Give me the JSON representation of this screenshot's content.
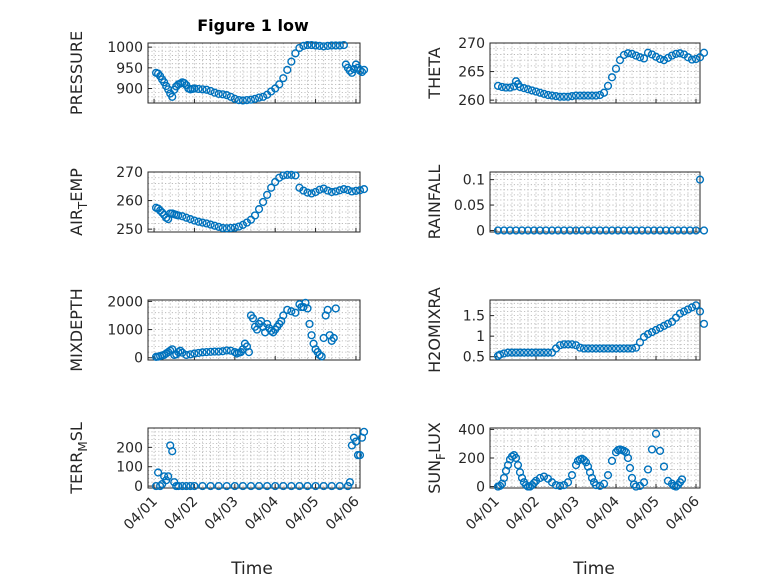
{
  "figure": {
    "title": "Figure 1 low",
    "xlabel": "Time",
    "x_tick_labels": [
      "04/01",
      "04/02",
      "04/03",
      "04/04",
      "04/05",
      "04/06"
    ],
    "marker_color": "#0072BD"
  },
  "chart_data": [
    {
      "type": "scatter",
      "ylabel": "PRESSURE",
      "ylim": [
        865,
        1010
      ],
      "yticks": [
        900,
        950,
        1000
      ],
      "grid": true,
      "x": [
        0.05,
        0.1,
        0.15,
        0.2,
        0.25,
        0.3,
        0.35,
        0.4,
        0.45,
        0.5,
        0.55,
        0.6,
        0.65,
        0.7,
        0.75,
        0.8,
        0.85,
        0.9,
        0.95,
        1.0,
        1.1,
        1.2,
        1.3,
        1.4,
        1.5,
        1.6,
        1.7,
        1.8,
        1.9,
        2.0,
        2.1,
        2.2,
        2.3,
        2.4,
        2.5,
        2.6,
        2.7,
        2.8,
        2.9,
        3.0,
        3.1,
        3.2,
        3.3,
        3.4,
        3.5,
        3.6,
        3.7,
        3.8,
        3.9,
        4.0,
        4.1,
        4.2,
        4.3,
        4.4,
        4.5,
        4.6,
        4.7,
        4.75,
        4.8,
        4.85,
        4.9,
        4.95,
        5.0,
        5.05,
        5.1,
        5.15,
        5.2
      ],
      "y": [
        938,
        936,
        930,
        922,
        915,
        906,
        898,
        888,
        880,
        897,
        905,
        910,
        912,
        915,
        913,
        908,
        900,
        898,
        899,
        900,
        899,
        898,
        897,
        894,
        890,
        887,
        886,
        884,
        880,
        875,
        872,
        871,
        872,
        873,
        875,
        878,
        880,
        885,
        893,
        900,
        910,
        925,
        945,
        965,
        985,
        998,
        1003,
        1005,
        1005,
        1004,
        1003,
        1002,
        1003,
        1004,
        1004,
        1004,
        1005,
        958,
        950,
        943,
        938,
        947,
        958,
        950,
        943,
        940,
        945
      ]
    },
    {
      "type": "scatter",
      "ylabel": "THETA",
      "ylim": [
        259.5,
        270
      ],
      "yticks": [
        260,
        265,
        270
      ],
      "grid": true,
      "x": [
        0.05,
        0.15,
        0.25,
        0.35,
        0.45,
        0.5,
        0.55,
        0.6,
        0.7,
        0.8,
        0.9,
        1.0,
        1.1,
        1.2,
        1.3,
        1.4,
        1.5,
        1.6,
        1.7,
        1.8,
        1.9,
        2.0,
        2.1,
        2.2,
        2.3,
        2.4,
        2.5,
        2.6,
        2.7,
        2.8,
        2.9,
        3.0,
        3.1,
        3.2,
        3.3,
        3.4,
        3.5,
        3.6,
        3.7,
        3.8,
        3.9,
        4.0,
        4.1,
        4.2,
        4.3,
        4.4,
        4.5,
        4.6,
        4.7,
        4.8,
        4.9,
        5.0,
        5.1,
        5.2
      ],
      "y": [
        262.5,
        262.3,
        262.2,
        262.2,
        262.4,
        263.3,
        262.8,
        262.3,
        262.1,
        261.9,
        261.7,
        261.5,
        261.3,
        261.1,
        260.9,
        260.8,
        260.7,
        260.6,
        260.6,
        260.6,
        260.7,
        260.8,
        260.8,
        260.8,
        260.8,
        260.8,
        260.8,
        260.9,
        261.3,
        262.5,
        264,
        265.5,
        267,
        267.9,
        268.2,
        268.1,
        267.8,
        267.5,
        267.3,
        268.3,
        268,
        267.6,
        267.2,
        267,
        267.4,
        267.8,
        268.1,
        268.2,
        268,
        267.5,
        267.1,
        267.2,
        267.5,
        268.3
      ]
    },
    {
      "type": "scatter",
      "ylabel": "AIR_TEMP",
      "ylabel_main": "AIR",
      "ylabel_sub": "T",
      "ylabel_rest": "EMP",
      "ylim": [
        249,
        270
      ],
      "yticks": [
        250,
        260,
        270
      ],
      "grid": true,
      "x": [
        0.05,
        0.1,
        0.15,
        0.2,
        0.25,
        0.3,
        0.35,
        0.4,
        0.45,
        0.5,
        0.55,
        0.6,
        0.7,
        0.8,
        0.9,
        1.0,
        1.1,
        1.2,
        1.3,
        1.4,
        1.5,
        1.6,
        1.7,
        1.8,
        1.9,
        2.0,
        2.1,
        2.2,
        2.3,
        2.4,
        2.5,
        2.6,
        2.7,
        2.8,
        2.9,
        3.0,
        3.1,
        3.2,
        3.3,
        3.4,
        3.5,
        3.6,
        3.7,
        3.8,
        3.9,
        4.0,
        4.1,
        4.2,
        4.3,
        4.4,
        4.5,
        4.6,
        4.7,
        4.8,
        4.9,
        5.0,
        5.1,
        5.2
      ],
      "y": [
        257.5,
        257.2,
        256.5,
        255.8,
        255,
        254,
        253.5,
        255.5,
        255.5,
        255.2,
        255,
        254.8,
        254.5,
        254,
        253.5,
        253,
        252.6,
        252.3,
        252,
        251.6,
        251.2,
        250.8,
        250.4,
        250.3,
        250.4,
        250.5,
        250.9,
        251.5,
        252.3,
        253.3,
        254.8,
        257,
        259.5,
        262,
        264.5,
        266.5,
        268,
        268.8,
        269,
        269,
        268.8,
        264.5,
        263.5,
        262.8,
        262.5,
        263,
        263.8,
        264.2,
        263.5,
        263,
        263.2,
        263.6,
        264,
        263.7,
        263.2,
        263.4,
        263.6,
        264
      ]
    },
    {
      "type": "scatter",
      "ylabel": "RAINFALL",
      "ylim": [
        -0.003,
        0.115
      ],
      "yticks": [
        0,
        0.05,
        0.1
      ],
      "ytick_labels": [
        "0",
        "0.05",
        "0.1"
      ],
      "grid": true,
      "x": [
        0.05,
        0.2,
        0.35,
        0.5,
        0.65,
        0.8,
        0.95,
        1.1,
        1.25,
        1.4,
        1.55,
        1.7,
        1.85,
        2.0,
        2.15,
        2.3,
        2.45,
        2.6,
        2.75,
        2.9,
        3.05,
        3.2,
        3.35,
        3.5,
        3.65,
        3.8,
        3.95,
        4.1,
        4.25,
        4.4,
        4.55,
        4.7,
        4.85,
        5.0,
        5.1,
        5.2
      ],
      "y": [
        0,
        0,
        0,
        0,
        0,
        0,
        0,
        0,
        0,
        0,
        0,
        0,
        0,
        0,
        0,
        0,
        0,
        0,
        0,
        0,
        0,
        0,
        0,
        0,
        0,
        0,
        0,
        0,
        0,
        0,
        0,
        0,
        0,
        0,
        0.1,
        0
      ]
    },
    {
      "type": "scatter",
      "ylabel": "MIXDEPTH",
      "ylim": [
        -80,
        2050
      ],
      "yticks": [
        0,
        1000,
        2000
      ],
      "grid": true,
      "x": [
        0.05,
        0.1,
        0.15,
        0.2,
        0.25,
        0.3,
        0.35,
        0.4,
        0.45,
        0.5,
        0.55,
        0.6,
        0.65,
        0.7,
        0.8,
        0.9,
        1.0,
        1.1,
        1.2,
        1.3,
        1.4,
        1.5,
        1.6,
        1.7,
        1.8,
        1.9,
        2.0,
        2.05,
        2.1,
        2.15,
        2.2,
        2.25,
        2.3,
        2.35,
        2.4,
        2.45,
        2.5,
        2.55,
        2.6,
        2.65,
        2.7,
        2.75,
        2.8,
        2.85,
        2.9,
        2.95,
        3.0,
        3.05,
        3.1,
        3.15,
        3.2,
        3.3,
        3.4,
        3.5,
        3.6,
        3.65,
        3.7,
        3.75,
        3.8,
        3.85,
        3.9,
        3.95,
        4.0,
        4.05,
        4.1,
        4.15,
        4.2,
        4.25,
        4.3,
        4.35,
        4.4,
        4.45,
        4.5
      ],
      "y": [
        30,
        40,
        60,
        80,
        100,
        150,
        200,
        250,
        300,
        100,
        120,
        200,
        250,
        180,
        100,
        120,
        150,
        170,
        190,
        200,
        210,
        220,
        220,
        230,
        260,
        250,
        200,
        150,
        180,
        200,
        300,
        500,
        400,
        200,
        1500,
        1400,
        1100,
        1000,
        1200,
        1300,
        1100,
        900,
        1200,
        1050,
        950,
        900,
        1000,
        1100,
        1200,
        1300,
        1500,
        1700,
        1650,
        1600,
        1900,
        1800,
        1800,
        1950,
        1750,
        1200,
        800,
        500,
        300,
        200,
        100,
        50,
        700,
        1500,
        1700,
        800,
        600,
        700,
        1750
      ]
    },
    {
      "type": "scatter",
      "ylabel": "H2OMIXRA",
      "ylim": [
        0.42,
        1.88
      ],
      "yticks": [
        0.5,
        1,
        1.5
      ],
      "ytick_labels": [
        "0.5",
        "1",
        "1.5"
      ],
      "grid": true,
      "x": [
        0.05,
        0.1,
        0.2,
        0.3,
        0.4,
        0.5,
        0.6,
        0.7,
        0.8,
        0.9,
        1.0,
        1.1,
        1.2,
        1.3,
        1.4,
        1.5,
        1.6,
        1.7,
        1.8,
        1.9,
        2.0,
        2.1,
        2.2,
        2.3,
        2.4,
        2.5,
        2.6,
        2.7,
        2.8,
        2.9,
        3.0,
        3.1,
        3.2,
        3.3,
        3.4,
        3.5,
        3.6,
        3.7,
        3.8,
        3.9,
        4.0,
        4.1,
        4.2,
        4.3,
        4.4,
        4.5,
        4.6,
        4.7,
        4.8,
        4.9,
        5.0,
        5.1,
        5.2
      ],
      "y": [
        0.52,
        0.55,
        0.58,
        0.6,
        0.6,
        0.6,
        0.6,
        0.6,
        0.6,
        0.6,
        0.6,
        0.6,
        0.6,
        0.6,
        0.6,
        0.7,
        0.78,
        0.8,
        0.8,
        0.8,
        0.78,
        0.72,
        0.7,
        0.7,
        0.7,
        0.7,
        0.7,
        0.7,
        0.7,
        0.7,
        0.7,
        0.7,
        0.7,
        0.7,
        0.7,
        0.72,
        0.85,
        0.98,
        1.05,
        1.1,
        1.15,
        1.2,
        1.25,
        1.3,
        1.35,
        1.45,
        1.55,
        1.6,
        1.65,
        1.7,
        1.75,
        1.6,
        1.3
      ]
    },
    {
      "type": "scatter",
      "ylabel": "TERR_MSL",
      "ylabel_main": "TERR",
      "ylabel_sub": "M",
      "ylabel_rest": "SL",
      "ylim": [
        -10,
        300
      ],
      "yticks": [
        0,
        100,
        200
      ],
      "grid": true,
      "x": [
        0.05,
        0.1,
        0.15,
        0.2,
        0.25,
        0.3,
        0.35,
        0.4,
        0.45,
        0.5,
        0.55,
        0.6,
        0.7,
        0.8,
        0.9,
        1.0,
        1.2,
        1.4,
        1.6,
        1.8,
        2.0,
        2.2,
        2.4,
        2.6,
        2.8,
        3.0,
        3.2,
        3.4,
        3.6,
        3.8,
        4.0,
        4.2,
        4.4,
        4.6,
        4.8,
        4.85,
        4.9,
        4.95,
        5.0,
        5.05,
        5.1,
        5.15,
        5.2
      ],
      "y": [
        0,
        70,
        0,
        10,
        50,
        30,
        50,
        210,
        180,
        20,
        0,
        0,
        0,
        0,
        0,
        0,
        0,
        0,
        0,
        0,
        0,
        0,
        0,
        0,
        0,
        0,
        0,
        0,
        0,
        0,
        0,
        0,
        0,
        0,
        0,
        20,
        210,
        250,
        230,
        160,
        160,
        250,
        280
      ]
    },
    {
      "type": "scatter",
      "ylabel": "SUN_FLUX",
      "ylabel_main": "SUN",
      "ylabel_sub": "F",
      "ylabel_rest": "LUX",
      "ylim": [
        -10,
        410
      ],
      "yticks": [
        0,
        200,
        400
      ],
      "grid": true,
      "x": [
        0.05,
        0.1,
        0.15,
        0.2,
        0.25,
        0.3,
        0.35,
        0.4,
        0.45,
        0.5,
        0.55,
        0.6,
        0.65,
        0.7,
        0.75,
        0.8,
        0.85,
        0.9,
        0.95,
        1.0,
        1.1,
        1.2,
        1.3,
        1.4,
        1.5,
        1.6,
        1.7,
        1.8,
        1.9,
        2.0,
        2.05,
        2.1,
        2.15,
        2.2,
        2.25,
        2.3,
        2.35,
        2.4,
        2.45,
        2.5,
        2.6,
        2.7,
        2.8,
        2.9,
        3.0,
        3.05,
        3.1,
        3.15,
        3.2,
        3.25,
        3.3,
        3.35,
        3.4,
        3.45,
        3.5,
        3.6,
        3.7,
        3.8,
        3.9,
        4.0,
        4.1,
        4.2,
        4.3,
        4.4,
        4.45,
        4.5,
        4.55,
        4.6,
        4.65
      ],
      "y": [
        0,
        5,
        20,
        60,
        110,
        150,
        190,
        210,
        220,
        200,
        150,
        100,
        60,
        30,
        10,
        0,
        0,
        10,
        25,
        40,
        60,
        70,
        55,
        30,
        10,
        5,
        10,
        30,
        80,
        150,
        180,
        190,
        195,
        185,
        170,
        140,
        100,
        60,
        30,
        10,
        5,
        20,
        80,
        180,
        240,
        255,
        260,
        255,
        250,
        240,
        200,
        130,
        60,
        15,
        0,
        5,
        30,
        120,
        260,
        370,
        250,
        140,
        40,
        20,
        5,
        0,
        10,
        30,
        50
      ]
    }
  ]
}
